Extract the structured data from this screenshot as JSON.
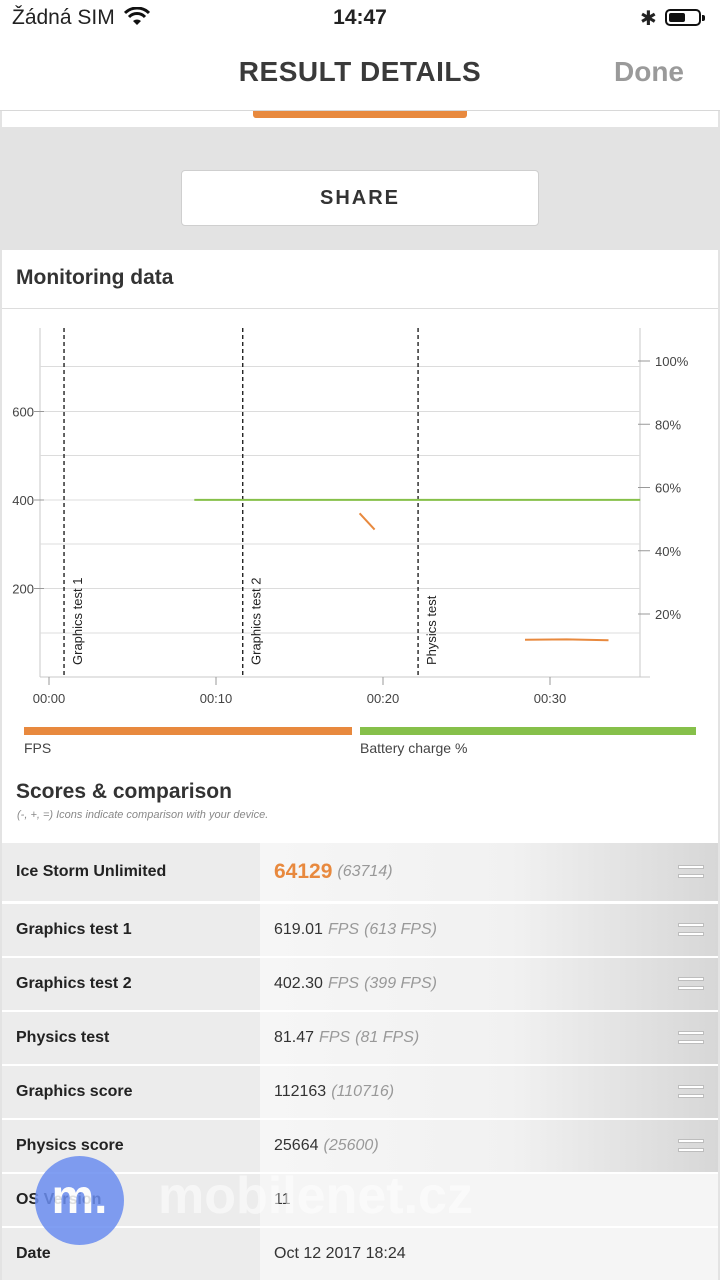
{
  "status": {
    "carrier": "Žádná SIM",
    "time": "14:47"
  },
  "nav": {
    "title": "RESULT DETAILS",
    "done": "Done"
  },
  "share": "SHARE",
  "monitoring": {
    "title": "Monitoring data"
  },
  "chart_data": {
    "type": "line",
    "x_ticks": [
      "00:00",
      "00:10",
      "00:20",
      "00:30"
    ],
    "y_left_ticks": [
      "200",
      "400",
      "600"
    ],
    "y_right_ticks": [
      "20%",
      "40%",
      "60%",
      "80%",
      "100%"
    ],
    "markers": [
      {
        "label": "Graphics test 1",
        "x": 0.9
      },
      {
        "label": "Graphics test 2",
        "x": 11.6
      },
      {
        "label": "Physics test",
        "x": 22.1
      }
    ],
    "series": [
      {
        "name": "FPS",
        "color": "#e8893e",
        "segments": [
          [
            [
              18.6,
              370
            ],
            [
              19.5,
              333
            ]
          ],
          [
            [
              28.5,
              84
            ],
            [
              31,
              85
            ],
            [
              33.5,
              83
            ]
          ]
        ]
      },
      {
        "name": "Battery charge %",
        "color": "#86c04a",
        "segments": [
          [
            [
              8.7,
              56
            ],
            [
              35.4,
              56
            ]
          ]
        ]
      }
    ],
    "legend": [
      "FPS",
      "Battery charge %"
    ]
  },
  "scores": {
    "title": "Scores & comparison",
    "note": "(-, +, =) Icons indicate comparison with your device.",
    "rows": [
      {
        "label": "Ice Storm Unlimited",
        "value": "64129",
        "ref": "(63714)"
      },
      {
        "label": "Graphics test 1",
        "value": "619.01",
        "unit": "FPS",
        "ref": "(613 FPS)"
      },
      {
        "label": "Graphics test 2",
        "value": "402.30",
        "unit": "FPS",
        "ref": "(399 FPS)"
      },
      {
        "label": "Physics test",
        "value": "81.47",
        "unit": "FPS",
        "ref": "(81 FPS)"
      },
      {
        "label": "Graphics score",
        "value": "112163",
        "ref": "(110716)"
      },
      {
        "label": "Physics score",
        "value": "25664",
        "ref": "(25600)"
      },
      {
        "label": "OS Version",
        "value": "11"
      },
      {
        "label": "Date",
        "value": "Oct 12 2017 18:24"
      }
    ]
  },
  "watermark": "mobilenet.cz",
  "logo_letter": "m."
}
